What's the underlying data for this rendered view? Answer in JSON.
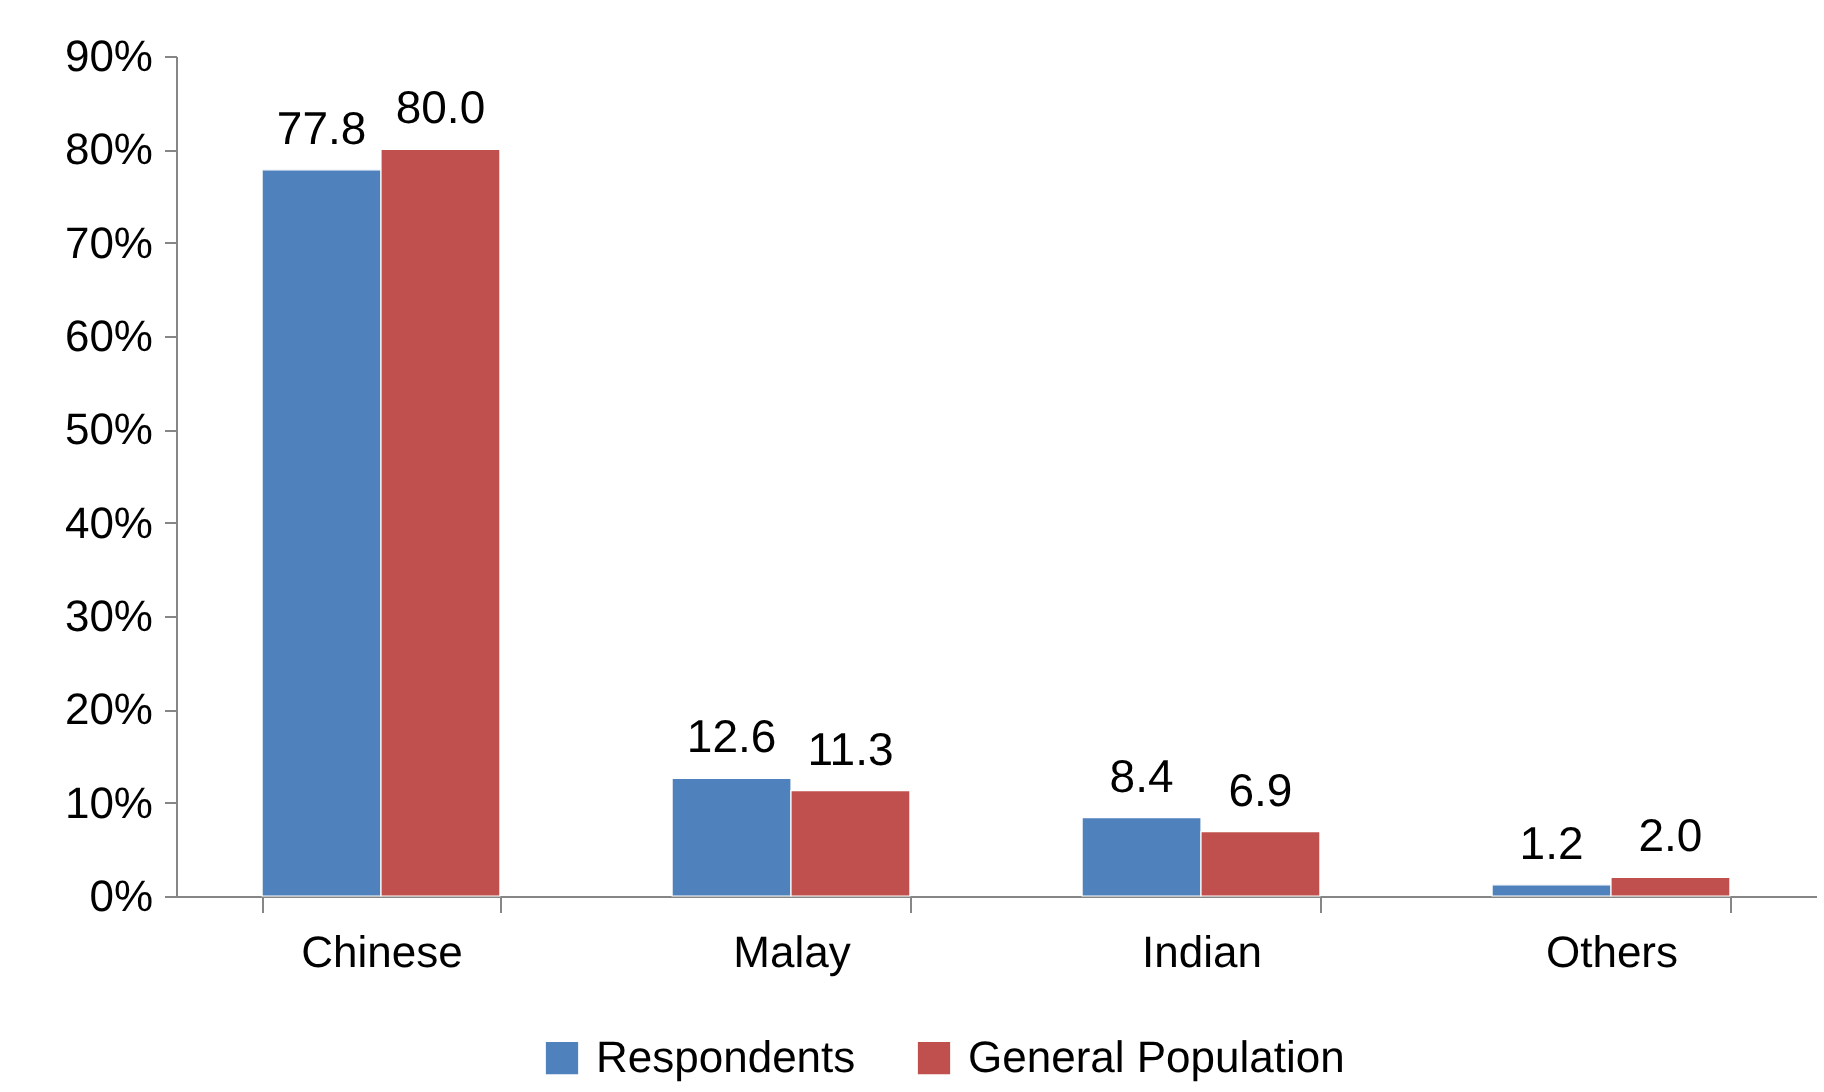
{
  "chart_data": {
    "type": "bar",
    "categories": [
      "Chinese",
      "Malay",
      "Indian",
      "Others"
    ],
    "series": [
      {
        "name": "Respondents",
        "color": "#4f81bd",
        "values": [
          77.8,
          12.6,
          8.4,
          1.2
        ],
        "value_labels": [
          "77.8",
          "12.6",
          "8.4",
          "1.2"
        ]
      },
      {
        "name": "General Population",
        "color": "#c0504d",
        "values": [
          80.0,
          11.3,
          6.9,
          2.0
        ],
        "value_labels": [
          "80.0",
          "11.3",
          "6.9",
          "2.0"
        ]
      }
    ],
    "ylim": [
      0,
      90
    ],
    "yticks": [
      {
        "value": 0,
        "label": "0%"
      },
      {
        "value": 10,
        "label": "10%"
      },
      {
        "value": 20,
        "label": "20%"
      },
      {
        "value": 30,
        "label": "30%"
      },
      {
        "value": 40,
        "label": "40%"
      },
      {
        "value": 50,
        "label": "50%"
      },
      {
        "value": 60,
        "label": "60%"
      },
      {
        "value": 70,
        "label": "70%"
      },
      {
        "value": 80,
        "label": "80%"
      },
      {
        "value": 90,
        "label": "90%"
      }
    ],
    "grid": false,
    "legend": "bottom"
  }
}
